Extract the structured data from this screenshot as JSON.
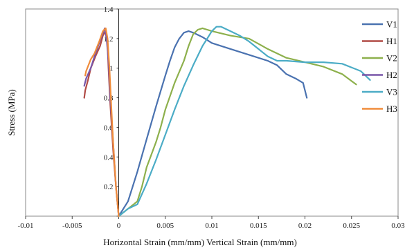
{
  "chart_data": {
    "type": "line",
    "title": "",
    "xlabel": "Horizontal Strain (mm/mm) Vertical Strain (mm/mm)",
    "ylabel": "Stress (MPa)",
    "xlim": [
      -0.01,
      0.03
    ],
    "ylim": [
      0,
      1.4
    ],
    "x_ticks": [
      -0.01,
      -0.005,
      0,
      0.005,
      0.01,
      0.015,
      0.02,
      0.025,
      0.03
    ],
    "x_tick_labels": [
      "-0.01",
      "-0.005",
      "0",
      "0.005",
      "0.01",
      "0.015",
      "0.02",
      "0.025",
      "0.03"
    ],
    "y_ticks": [
      0,
      0.2,
      0.4,
      0.6,
      0.8,
      1,
      1.2,
      1.4
    ],
    "y_tick_labels": [
      "",
      "0.2",
      "0.4",
      "0.6",
      "0.8",
      "1",
      "1.2",
      "1.4"
    ],
    "grid": false,
    "legend_position": "right",
    "series": [
      {
        "name": "V1",
        "color": "#4a72b0",
        "points": [
          [
            0,
            0
          ],
          [
            0.001,
            0.1
          ],
          [
            0.002,
            0.3
          ],
          [
            0.003,
            0.52
          ],
          [
            0.004,
            0.74
          ],
          [
            0.005,
            0.95
          ],
          [
            0.0055,
            1.05
          ],
          [
            0.006,
            1.14
          ],
          [
            0.0065,
            1.2
          ],
          [
            0.007,
            1.24
          ],
          [
            0.0075,
            1.25
          ],
          [
            0.008,
            1.24
          ],
          [
            0.009,
            1.21
          ],
          [
            0.01,
            1.17
          ],
          [
            0.012,
            1.13
          ],
          [
            0.014,
            1.09
          ],
          [
            0.016,
            1.05
          ],
          [
            0.017,
            1.02
          ],
          [
            0.018,
            0.96
          ],
          [
            0.019,
            0.93
          ],
          [
            0.0198,
            0.9
          ],
          [
            0.02,
            0.85
          ],
          [
            0.0202,
            0.8
          ]
        ]
      },
      {
        "name": "H1",
        "color": "#b04a45",
        "points": [
          [
            0,
            0
          ],
          [
            -0.0003,
            0.2
          ],
          [
            -0.0006,
            0.45
          ],
          [
            -0.0009,
            0.75
          ],
          [
            -0.0011,
            1.0
          ],
          [
            -0.0012,
            1.15
          ],
          [
            -0.0014,
            1.25
          ],
          [
            -0.0017,
            1.22
          ],
          [
            -0.002,
            1.15
          ],
          [
            -0.0025,
            1.08
          ],
          [
            -0.003,
            1.0
          ],
          [
            -0.0033,
            0.92
          ],
          [
            -0.0036,
            0.85
          ],
          [
            -0.0037,
            0.8
          ]
        ]
      },
      {
        "name": "V2",
        "color": "#8db04c",
        "points": [
          [
            0,
            0
          ],
          [
            0.001,
            0.05
          ],
          [
            0.002,
            0.1
          ],
          [
            0.0025,
            0.2
          ],
          [
            0.003,
            0.33
          ],
          [
            0.004,
            0.5
          ],
          [
            0.0045,
            0.6
          ],
          [
            0.005,
            0.72
          ],
          [
            0.006,
            0.9
          ],
          [
            0.007,
            1.05
          ],
          [
            0.0075,
            1.15
          ],
          [
            0.008,
            1.23
          ],
          [
            0.0085,
            1.26
          ],
          [
            0.009,
            1.27
          ],
          [
            0.0095,
            1.26
          ],
          [
            0.01,
            1.25
          ],
          [
            0.012,
            1.22
          ],
          [
            0.014,
            1.2
          ],
          [
            0.016,
            1.13
          ],
          [
            0.018,
            1.07
          ],
          [
            0.02,
            1.04
          ],
          [
            0.022,
            1.01
          ],
          [
            0.024,
            0.96
          ],
          [
            0.0255,
            0.89
          ]
        ]
      },
      {
        "name": "H2",
        "color": "#7856a8",
        "points": [
          [
            0,
            0
          ],
          [
            -0.0003,
            0.2
          ],
          [
            -0.0006,
            0.5
          ],
          [
            -0.0009,
            0.8
          ],
          [
            -0.0011,
            1.05
          ],
          [
            -0.0013,
            1.2
          ],
          [
            -0.0015,
            1.27
          ],
          [
            -0.0018,
            1.22
          ],
          [
            -0.0021,
            1.17
          ],
          [
            -0.0025,
            1.1
          ],
          [
            -0.003,
            1.0
          ],
          [
            -0.0035,
            0.93
          ],
          [
            -0.0037,
            0.88
          ]
        ]
      },
      {
        "name": "V3",
        "color": "#4bacc6",
        "points": [
          [
            0,
            0
          ],
          [
            0.001,
            0.05
          ],
          [
            0.002,
            0.08
          ],
          [
            0.003,
            0.22
          ],
          [
            0.004,
            0.38
          ],
          [
            0.005,
            0.55
          ],
          [
            0.006,
            0.72
          ],
          [
            0.007,
            0.88
          ],
          [
            0.008,
            1.02
          ],
          [
            0.009,
            1.15
          ],
          [
            0.0095,
            1.2
          ],
          [
            0.01,
            1.25
          ],
          [
            0.0105,
            1.28
          ],
          [
            0.011,
            1.28
          ],
          [
            0.012,
            1.25
          ],
          [
            0.013,
            1.22
          ],
          [
            0.014,
            1.18
          ],
          [
            0.015,
            1.13
          ],
          [
            0.016,
            1.08
          ],
          [
            0.017,
            1.05
          ],
          [
            0.018,
            1.05
          ],
          [
            0.02,
            1.04
          ],
          [
            0.022,
            1.04
          ],
          [
            0.024,
            1.03
          ],
          [
            0.026,
            0.98
          ],
          [
            0.027,
            0.92
          ]
        ]
      },
      {
        "name": "H3",
        "color": "#f08c3a",
        "points": [
          [
            0,
            0
          ],
          [
            -0.0003,
            0.2
          ],
          [
            -0.0006,
            0.5
          ],
          [
            -0.0008,
            0.75
          ],
          [
            -0.001,
            1.0
          ],
          [
            -0.0012,
            1.2
          ],
          [
            -0.0014,
            1.27
          ],
          [
            -0.0017,
            1.25
          ],
          [
            -0.0021,
            1.18
          ],
          [
            -0.0026,
            1.1
          ],
          [
            -0.003,
            1.06
          ],
          [
            -0.0035,
            0.98
          ],
          [
            -0.0036,
            0.95
          ]
        ]
      }
    ]
  }
}
